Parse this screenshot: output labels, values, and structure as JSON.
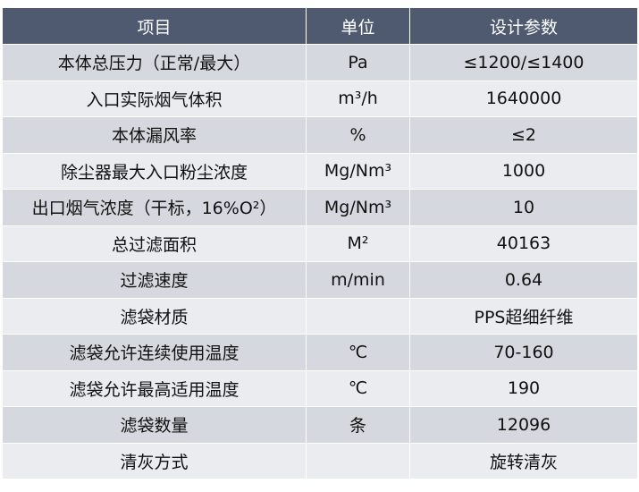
{
  "table": {
    "header": [
      "项目",
      "单位",
      "设计参数"
    ],
    "rows": [
      [
        "本体总压力（正常/最大）",
        "Pa",
        "≤1200/≤1400"
      ],
      [
        "入口实际烟气体积",
        "m³/h",
        "1640000"
      ],
      [
        "本体漏风率",
        "%",
        "≤2"
      ],
      [
        "除尘器最大入口粉尘浓度",
        "Mg/Nm³",
        "1000"
      ],
      [
        "出口烟气浓度（干标，16%O²）",
        "Mg/Nm³",
        "10"
      ],
      [
        "总过滤面积",
        "M²",
        "40163"
      ],
      [
        "过滤速度",
        "m/min",
        "0.64"
      ],
      [
        "滤袋材质",
        null,
        "PPS超细纤维"
      ],
      [
        "滤袋允许连续使用温度",
        "℃",
        "70-160"
      ],
      [
        "滤袋允许最高适用温度",
        "℃",
        "190"
      ],
      [
        "滤袋数量",
        "条",
        "12096"
      ],
      [
        "清灰方式",
        null,
        "旋转清灰"
      ]
    ]
  }
}
